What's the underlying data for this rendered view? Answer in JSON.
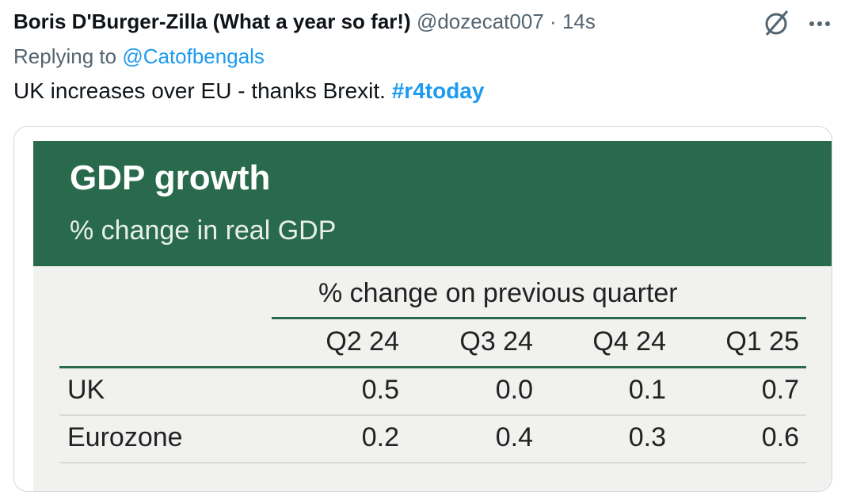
{
  "tweet": {
    "author_name": "Boris D'Burger-Zilla (What a year so far!)",
    "handle": "@dozecat007",
    "separator": "·",
    "time": "14s",
    "reply_prefix": "Replying to",
    "reply_to": "@Catofbengals",
    "text": "UK increases over EU - thanks Brexit.",
    "hashtag": "#r4today"
  },
  "image": {
    "title": "GDP growth",
    "subtitle": "% change in real GDP",
    "table": {
      "column_group": "% change on previous quarter",
      "columns": [
        "Q2 24",
        "Q3 24",
        "Q4 24",
        "Q1 25"
      ],
      "rows": [
        [
          "UK",
          "0.5",
          "0.0",
          "0.1",
          "0.7"
        ],
        [
          "Eurozone",
          "0.2",
          "0.4",
          "0.3",
          "0.6"
        ]
      ]
    }
  }
}
